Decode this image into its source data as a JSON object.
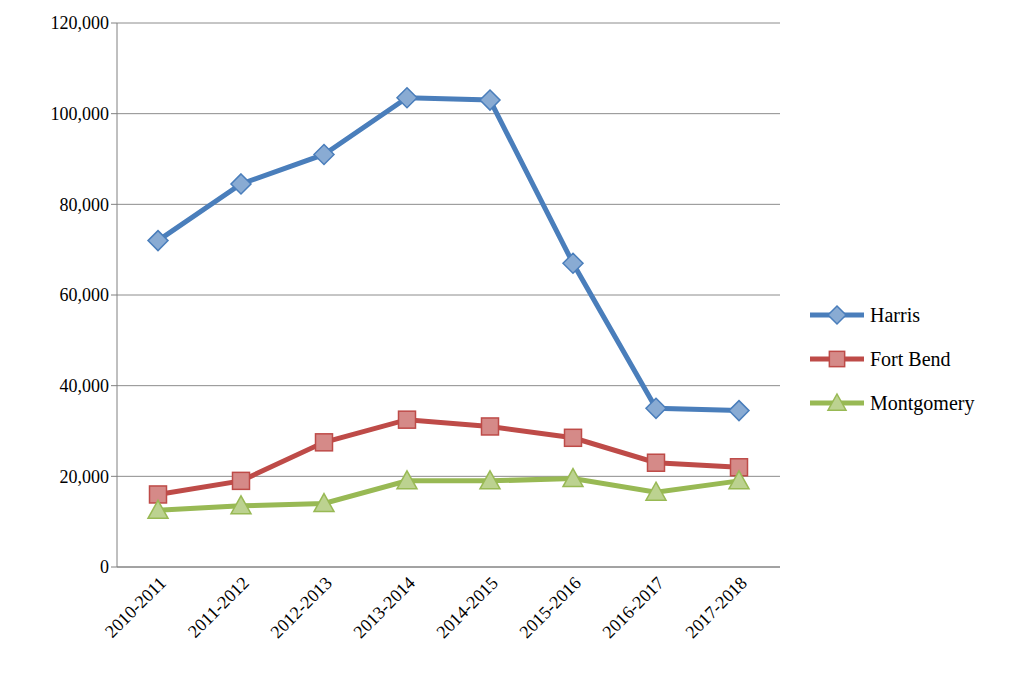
{
  "chart_data": {
    "type": "line",
    "categories": [
      "2010-2011",
      "2011-2012",
      "2012-2013",
      "2013-2014",
      "2014-2015",
      "2015-2016",
      "2016-2017",
      "2017-2018"
    ],
    "series": [
      {
        "name": "Harris",
        "color": "#4a7ebb",
        "marker": "diamond",
        "values": [
          72000,
          84500,
          91000,
          103500,
          103000,
          67000,
          35000,
          34500
        ]
      },
      {
        "name": "Fort Bend",
        "color": "#be4b48",
        "marker": "square",
        "values": [
          16000,
          19000,
          27500,
          32500,
          31000,
          28500,
          23000,
          22000
        ]
      },
      {
        "name": "Montgomery",
        "color": "#98b954",
        "marker": "triangle",
        "values": [
          12500,
          13500,
          14000,
          19000,
          19000,
          19500,
          16500,
          19000
        ]
      }
    ],
    "ylim": [
      0,
      120000
    ],
    "yticks": [
      0,
      {
        "value": 20000,
        "label": "20,000"
      },
      {
        "value": 40000,
        "label": "40,000"
      },
      {
        "value": 60000,
        "label": "60,000"
      },
      {
        "value": 80000,
        "label": "80,000"
      },
      {
        "value": 100000,
        "label": "100,000"
      },
      {
        "value": 120000,
        "label": "120,000"
      }
    ],
    "grid": true,
    "legend": "right"
  }
}
